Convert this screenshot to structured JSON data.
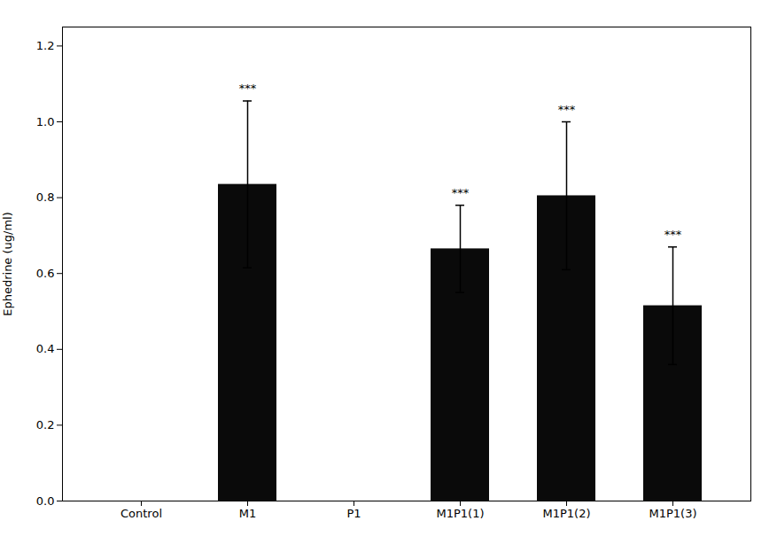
{
  "chart_data": {
    "type": "bar",
    "categories": [
      "Control",
      "M1",
      "P1",
      "M1P1(1)",
      "M1P1(2)",
      "M1P1(3)"
    ],
    "values": [
      0.0,
      0.835,
      0.0,
      0.665,
      0.805,
      0.515
    ],
    "errors": [
      0.0,
      0.22,
      0.0,
      0.115,
      0.195,
      0.155
    ],
    "color": "#0a0a0a",
    "ylabel": "Ephedrine (ug/ml)",
    "ylim": [
      0.0,
      1.25
    ],
    "yticks": [
      {
        "value": 0,
        "label": "0.0"
      },
      0.2,
      0.4,
      0.6,
      0.8,
      {
        "value": 1,
        "label": "1.0"
      },
      1.2
    ],
    "annotations": [
      {
        "category": "M1",
        "text": "***"
      },
      {
        "category": "M1P1(1)",
        "text": "***"
      },
      {
        "category": "M1P1(2)",
        "text": "***"
      },
      {
        "category": "M1P1(3)",
        "text": "***"
      }
    ]
  }
}
